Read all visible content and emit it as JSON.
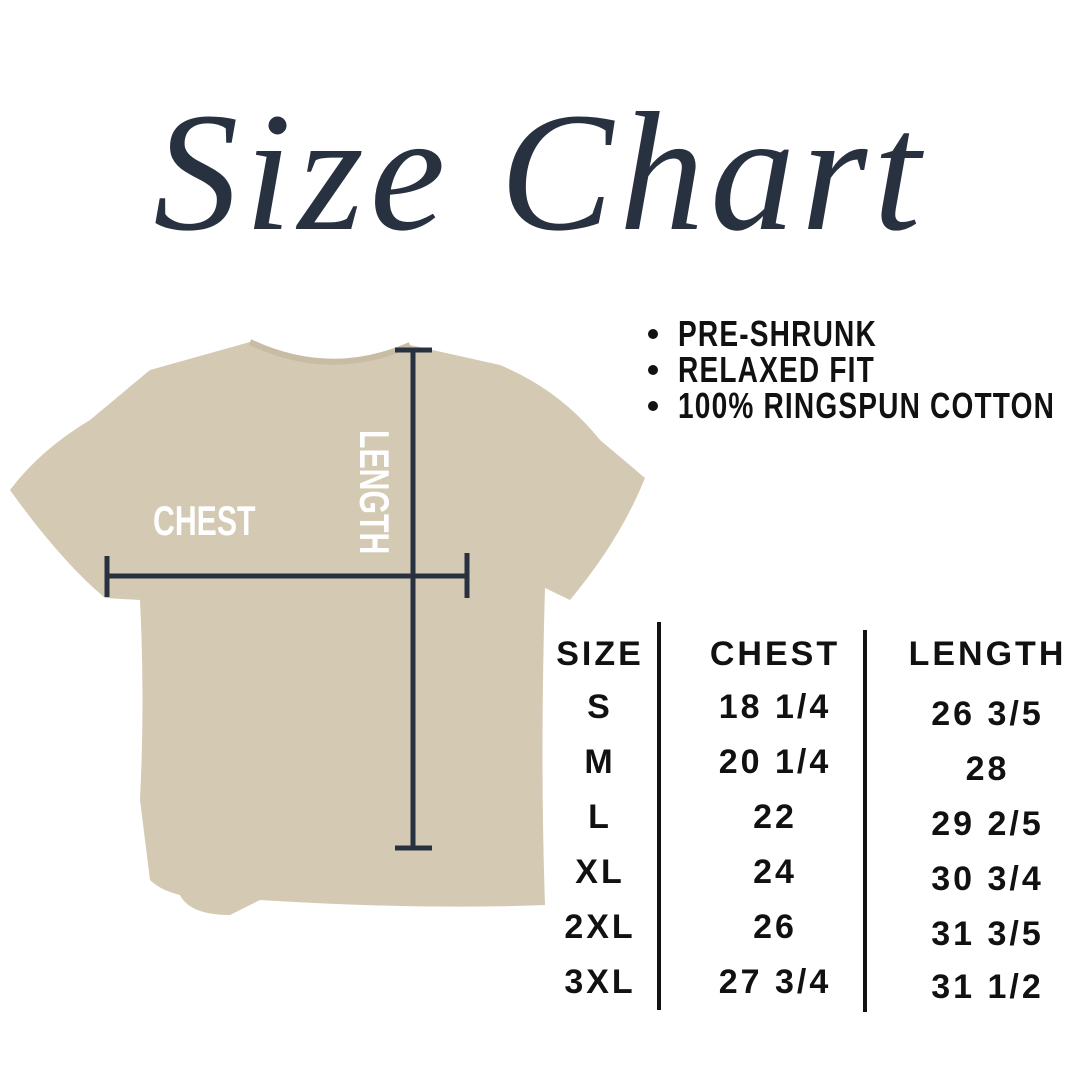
{
  "title": "Size Chart",
  "shirt": {
    "chest_label": "CHEST",
    "length_label": "LENGTH",
    "color": "#d4c9b3",
    "line_color": "#283140"
  },
  "features": [
    "PRE-SHRUNK",
    "RELAXED FIT",
    "100% RINGSPUN COTTON"
  ],
  "table": {
    "headers": [
      "SIZE",
      "CHEST",
      "LENGTH"
    ],
    "sizes": [
      "S",
      "M",
      "L",
      "XL",
      "2XL",
      "3XL"
    ],
    "chest": [
      "18 1/4",
      "20 1/4",
      "22",
      "24",
      "26",
      "27 3/4"
    ],
    "length": [
      "26 3/5",
      "28",
      "29 2/5",
      "30 3/4",
      "31 3/5",
      "31 1/2"
    ]
  }
}
